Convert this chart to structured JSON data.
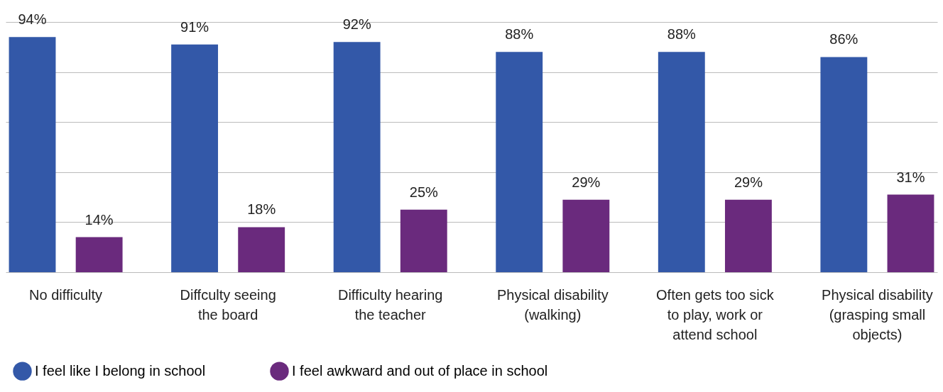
{
  "chart_data": {
    "type": "bar",
    "categories": [
      "No difficulty",
      "Diffculty seeing\nthe board",
      "Difficulty hearing\nthe teacher",
      "Physical disability\n(walking)",
      "Often gets too sick\nto play, work or\nattend school",
      "Physical disability\n(grasping small\nobjects)"
    ],
    "series": [
      {
        "name": "I feel like I belong in school",
        "color": "#3358a8",
        "values": [
          94,
          91,
          92,
          88,
          88,
          86
        ],
        "value_labels": [
          "94%",
          "91%",
          "92%",
          "88%",
          "88%",
          "86%"
        ]
      },
      {
        "name": "I feel awkward and out of place in school",
        "color": "#6a2a7d",
        "values": [
          14,
          18,
          25,
          29,
          29,
          31
        ],
        "value_labels": [
          "14%",
          "18%",
          "25%",
          "29%",
          "29%",
          "31%"
        ]
      }
    ],
    "ylim": [
      0,
      100
    ],
    "yticks": [
      0,
      20,
      40,
      60,
      80,
      100
    ],
    "tick_labels": "x",
    "grid": "y",
    "legend": "bottom"
  }
}
